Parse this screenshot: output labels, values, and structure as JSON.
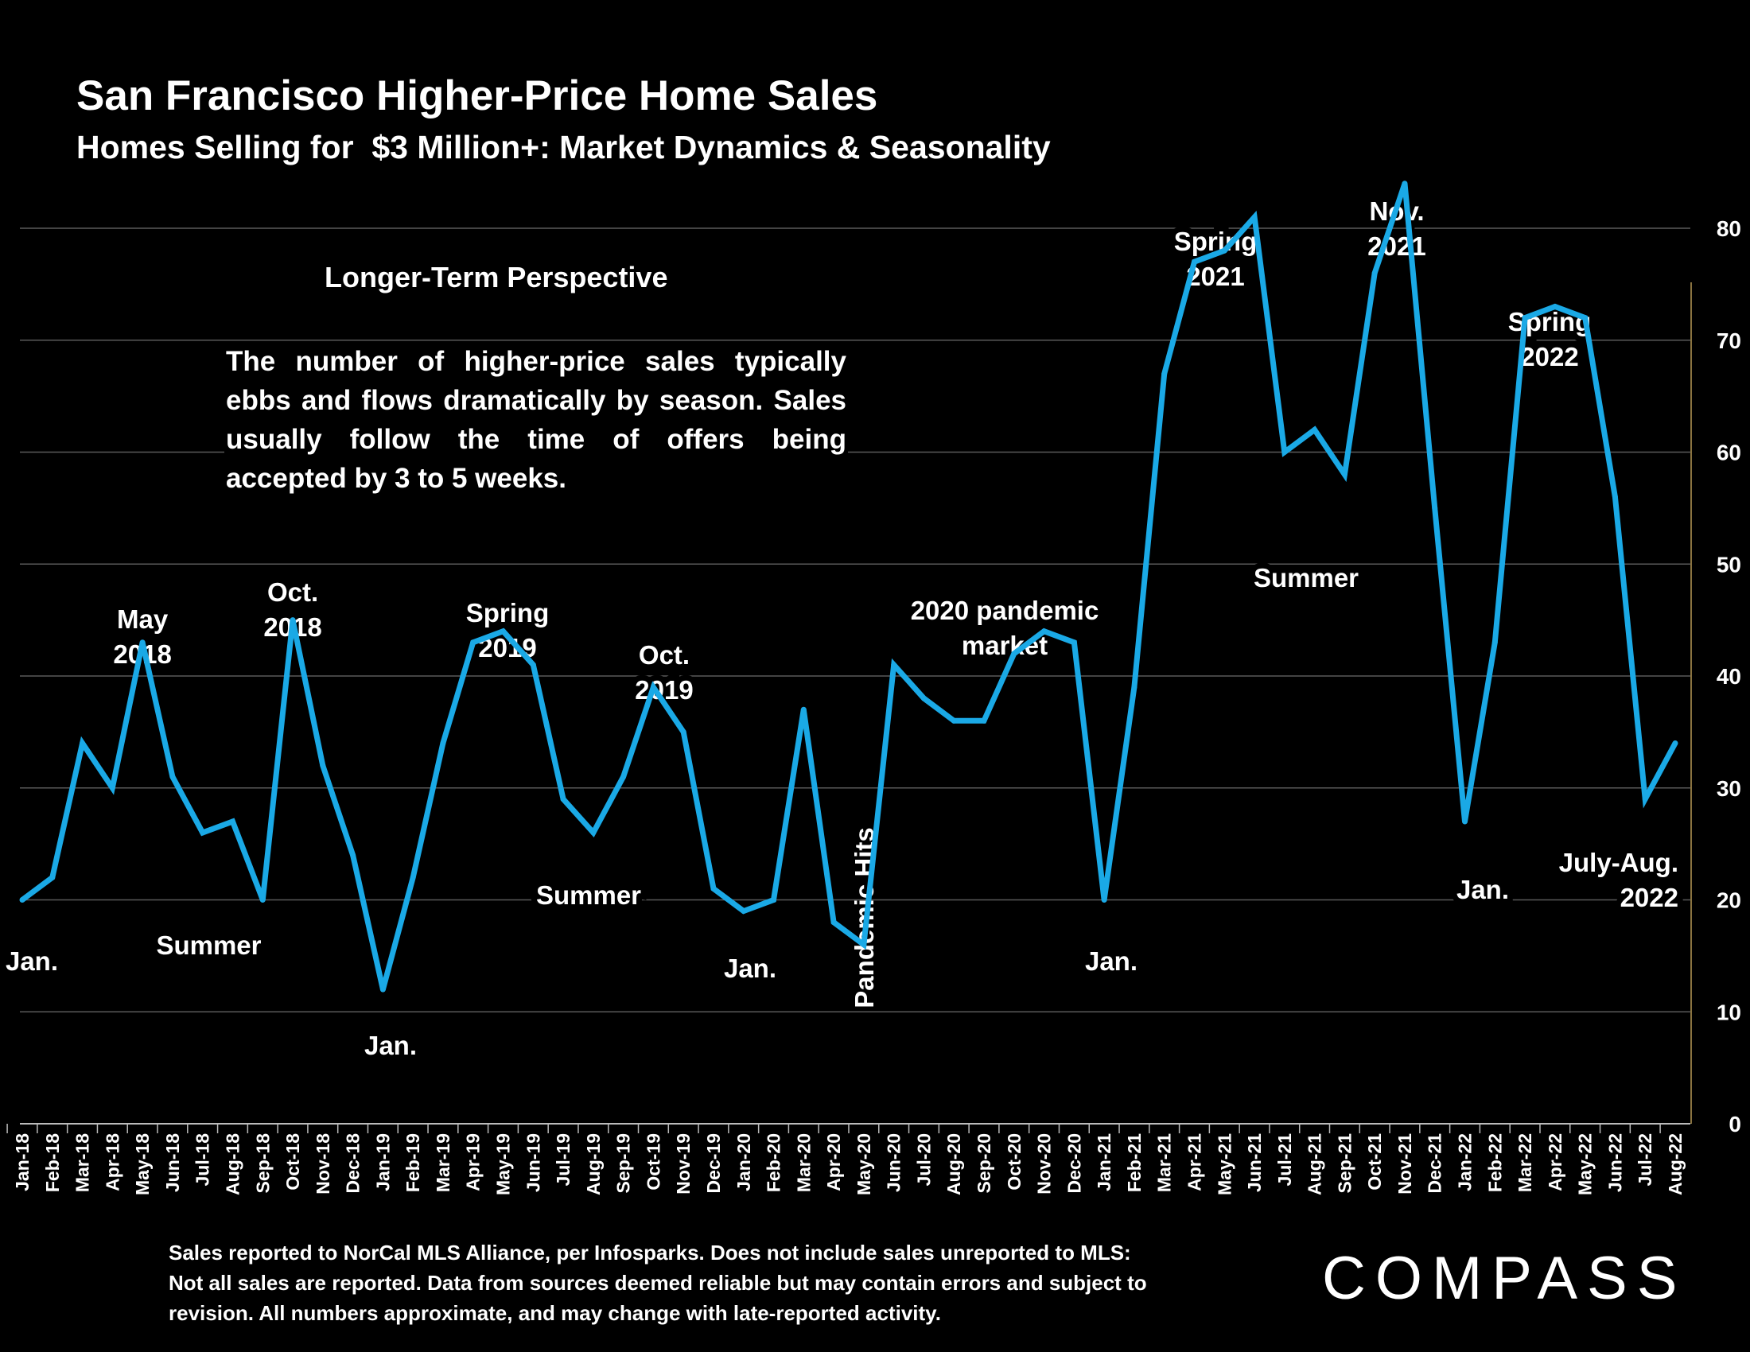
{
  "colors": {
    "background": "#000000",
    "line": "#1AA9E6",
    "text": "#ffffff",
    "grid": "#5a5a5a",
    "axis": "#8a7340"
  },
  "header": {
    "title": "San Francisco Higher-Price Home Sales",
    "subtitle": "Homes Selling for  $3 Million+: Market Dynamics & Seasonality"
  },
  "perspective": {
    "title": "Longer-Term Perspective",
    "body": "The number of higher-price sales typically ebbs and flows dramatically by season. Sales usually follow the time of offers being accepted by 3 to 5 weeks."
  },
  "footnote": "Sales reported to NorCal MLS Alliance, per Infosparks. Does not include sales unreported to MLS: Not all sales are reported. Data from sources deemed reliable but may contain errors and subject to revision.  All numbers approximate, and may change with late-reported activity.",
  "logo": "COMPASS",
  "chart_data": {
    "type": "line",
    "title": "San Francisco Higher-Price Home Sales",
    "subtitle": "Homes Selling for  $3 Million+: Market Dynamics & Seasonality",
    "xlabel": "",
    "ylabel": "",
    "ylim": [
      0,
      80
    ],
    "yticks": [
      0,
      10,
      20,
      30,
      40,
      50,
      60,
      70,
      80
    ],
    "y_axis_side": "right",
    "grid": true,
    "categories": [
      "Jan-18",
      "Feb-18",
      "Mar-18",
      "Apr-18",
      "May-18",
      "Jun-18",
      "Jul-18",
      "Aug-18",
      "Sep-18",
      "Oct-18",
      "Nov-18",
      "Dec-18",
      "Jan-19",
      "Feb-19",
      "Mar-19",
      "Apr-19",
      "May-19",
      "Jun-19",
      "Jul-19",
      "Aug-19",
      "Sep-19",
      "Oct-19",
      "Nov-19",
      "Dec-19",
      "Jan-20",
      "Feb-20",
      "Mar-20",
      "Apr-20",
      "May-20",
      "Jun-20",
      "Jul-20",
      "Aug-20",
      "Sep-20",
      "Oct-20",
      "Nov-20",
      "Dec-20",
      "Jan-21",
      "Feb-21",
      "Mar-21",
      "Apr-21",
      "May-21",
      "Jun-21",
      "Jul-21",
      "Aug-21",
      "Sep-21",
      "Oct-21",
      "Nov-21",
      "Dec-21",
      "Jan-22",
      "Feb-22",
      "Mar-22",
      "Apr-22",
      "May-22",
      "Jun-22",
      "Jul-22",
      "Aug-22"
    ],
    "series": [
      {
        "values": [
          20,
          22,
          34,
          30,
          43,
          31,
          26,
          27,
          20,
          45,
          32,
          24,
          12,
          22,
          34,
          43,
          44,
          41,
          29,
          26,
          31,
          39,
          35,
          21,
          19,
          20,
          37,
          18,
          16,
          41,
          38,
          36,
          36,
          42,
          44,
          43,
          20,
          39,
          67,
          77,
          78,
          81,
          60,
          62,
          58,
          76,
          84,
          55,
          27,
          43,
          72,
          73,
          72,
          56,
          29,
          34
        ]
      }
    ],
    "annotations": [
      {
        "text": "Jan.",
        "index": 0
      },
      {
        "text": "May\n2018",
        "index": 4
      },
      {
        "text": "Summer",
        "index": 7
      },
      {
        "text": "Oct.\n2018",
        "index": 9
      },
      {
        "text": "Jan.",
        "index": 12
      },
      {
        "text": "Spring\n2019",
        "index": 16
      },
      {
        "text": "Summer",
        "index": 19
      },
      {
        "text": "Oct.\n2019",
        "index": 21
      },
      {
        "text": "Jan.",
        "index": 24
      },
      {
        "text": "Pandemic Hits",
        "index": 28
      },
      {
        "text": "2020 pandemic\nmarket",
        "index": 34
      },
      {
        "text": "Jan.",
        "index": 36
      },
      {
        "text": "Spring\n2021",
        "index": 40
      },
      {
        "text": "Summer",
        "index": 43
      },
      {
        "text": "Nov.\n2021",
        "index": 46
      },
      {
        "text": "Jan.",
        "index": 48
      },
      {
        "text": "Spring\n2022",
        "index": 51
      },
      {
        "text": "July-Aug.\n2022",
        "index": 55
      }
    ]
  }
}
